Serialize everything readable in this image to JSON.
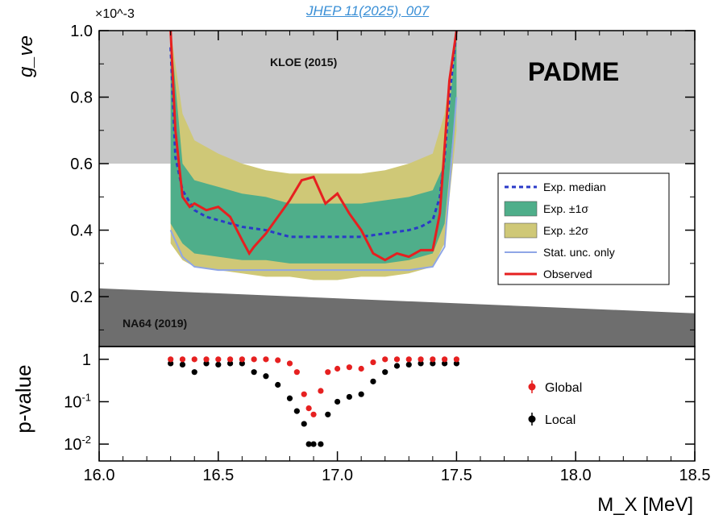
{
  "reference": "JHEP 11(2025), 007",
  "chart_data": [
    {
      "type": "line",
      "ylabel": "g_ve",
      "y_multiplier": "×10^-3",
      "ylim": [
        0.05,
        1.0
      ],
      "xlim": [
        16.0,
        18.5
      ],
      "yticks": [
        "0.2",
        "0.4",
        "0.6",
        "0.8",
        "1.0"
      ],
      "yticks_values": [
        0.2,
        0.4,
        0.6,
        0.8,
        1.0
      ],
      "experiment_label": "PADME",
      "excluded_regions": [
        {
          "name": "KLOE (2015)",
          "y_lower": 0.6,
          "y_upper": 1.0,
          "color": "#c8c8c8"
        },
        {
          "name": "NA64 (2019)",
          "y_upper_at_xmin": 0.225,
          "y_upper_at_xmax": 0.15,
          "color": "#6e6e6e"
        }
      ],
      "legend_location": "right",
      "legend": [
        {
          "label": "Exp. median",
          "style": "dashed",
          "color": "#2a3ac8"
        },
        {
          "label": "Exp. ±1σ",
          "style": "fill",
          "color": "#4fae8a"
        },
        {
          "label": "Exp. ±2σ",
          "style": "fill",
          "color": "#cfc877"
        },
        {
          "label": "Stat. unc. only",
          "style": "line",
          "color": "#8fa6e6"
        },
        {
          "label": "Observed",
          "style": "line",
          "color": "#e62020"
        }
      ],
      "series": [
        {
          "name": "Exp. median",
          "x": [
            16.3,
            16.32,
            16.35,
            16.4,
            16.45,
            16.5,
            16.6,
            16.7,
            16.8,
            16.9,
            17.0,
            17.1,
            17.2,
            17.3,
            17.35,
            17.4,
            17.43,
            17.45,
            17.47,
            17.5
          ],
          "y": [
            0.95,
            0.62,
            0.52,
            0.46,
            0.44,
            0.43,
            0.41,
            0.4,
            0.38,
            0.38,
            0.38,
            0.38,
            0.39,
            0.4,
            0.41,
            0.43,
            0.5,
            0.62,
            0.8,
            1.0
          ]
        },
        {
          "name": "Observed",
          "x": [
            16.3,
            16.32,
            16.35,
            16.38,
            16.4,
            16.45,
            16.5,
            16.55,
            16.6,
            16.63,
            16.65,
            16.7,
            16.75,
            16.8,
            16.85,
            16.9,
            16.95,
            17.0,
            17.05,
            17.1,
            17.15,
            17.2,
            17.25,
            17.3,
            17.35,
            17.4,
            17.43,
            17.45,
            17.47,
            17.5
          ],
          "y": [
            1.0,
            0.7,
            0.5,
            0.47,
            0.48,
            0.46,
            0.47,
            0.44,
            0.37,
            0.33,
            0.35,
            0.39,
            0.44,
            0.49,
            0.55,
            0.56,
            0.48,
            0.51,
            0.45,
            0.4,
            0.33,
            0.31,
            0.33,
            0.32,
            0.34,
            0.34,
            0.45,
            0.65,
            0.85,
            1.0
          ]
        }
      ],
      "bands": {
        "x": [
          16.3,
          16.35,
          16.4,
          16.5,
          16.6,
          16.7,
          16.8,
          16.9,
          17.0,
          17.1,
          17.2,
          17.3,
          17.4,
          17.45,
          17.5
        ],
        "one_sigma_low": [
          0.42,
          0.36,
          0.33,
          0.32,
          0.31,
          0.31,
          0.3,
          0.3,
          0.3,
          0.3,
          0.3,
          0.31,
          0.33,
          0.42,
          0.8
        ],
        "one_sigma_high": [
          1.0,
          0.6,
          0.55,
          0.53,
          0.51,
          0.5,
          0.48,
          0.48,
          0.48,
          0.48,
          0.49,
          0.5,
          0.52,
          0.6,
          1.0
        ],
        "two_sigma_low": [
          0.36,
          0.31,
          0.29,
          0.28,
          0.27,
          0.26,
          0.26,
          0.25,
          0.25,
          0.26,
          0.26,
          0.27,
          0.29,
          0.36,
          0.7
        ],
        "two_sigma_high": [
          1.0,
          0.75,
          0.67,
          0.63,
          0.6,
          0.58,
          0.57,
          0.57,
          0.57,
          0.57,
          0.58,
          0.6,
          0.63,
          0.75,
          1.0
        ],
        "stat_only": [
          0.4,
          0.32,
          0.29,
          0.28,
          0.28,
          0.28,
          0.28,
          0.28,
          0.28,
          0.28,
          0.28,
          0.28,
          0.29,
          0.35,
          0.8
        ]
      }
    },
    {
      "type": "scatter",
      "ylabel": "p-value",
      "xlabel": "M_X [MeV]",
      "xlim": [
        16.0,
        18.5
      ],
      "xticks": [
        "16.0",
        "16.5",
        "17.0",
        "17.5",
        "18.0",
        "18.5"
      ],
      "xticks_values": [
        16.0,
        16.5,
        17.0,
        17.5,
        18.0,
        18.5
      ],
      "yscale": "log",
      "ylim": [
        0.004,
        2.0
      ],
      "yticks": [
        "1",
        "10^-1",
        "10^-2"
      ],
      "yticks_values": [
        1,
        0.1,
        0.01
      ],
      "legend_location": "right",
      "legend": [
        {
          "label": "Global",
          "color": "#e62020"
        },
        {
          "label": "Local",
          "color": "#000000"
        }
      ],
      "series": [
        {
          "name": "Global",
          "x": [
            16.3,
            16.35,
            16.4,
            16.45,
            16.5,
            16.55,
            16.6,
            16.65,
            16.7,
            16.75,
            16.8,
            16.83,
            16.86,
            16.88,
            16.9,
            16.93,
            16.96,
            17.0,
            17.05,
            17.1,
            17.15,
            17.2,
            17.25,
            17.3,
            17.35,
            17.4,
            17.45,
            17.5
          ],
          "y": [
            1,
            1,
            1,
            1,
            1,
            1,
            1,
            1,
            1,
            0.95,
            0.8,
            0.5,
            0.15,
            0.07,
            0.05,
            0.18,
            0.5,
            0.6,
            0.65,
            0.6,
            0.85,
            1,
            1,
            1,
            1,
            1,
            1,
            1
          ]
        },
        {
          "name": "Local",
          "x": [
            16.3,
            16.35,
            16.4,
            16.45,
            16.5,
            16.55,
            16.6,
            16.65,
            16.7,
            16.75,
            16.8,
            16.83,
            16.86,
            16.88,
            16.9,
            16.93,
            16.96,
            17.0,
            17.05,
            17.1,
            17.15,
            17.2,
            17.25,
            17.3,
            17.35,
            17.4,
            17.45,
            17.5
          ],
          "y": [
            0.8,
            0.75,
            0.5,
            0.8,
            0.75,
            0.8,
            0.8,
            0.5,
            0.4,
            0.25,
            0.12,
            0.06,
            0.03,
            0.01,
            0.01,
            0.01,
            0.05,
            0.1,
            0.13,
            0.15,
            0.3,
            0.5,
            0.7,
            0.75,
            0.8,
            0.8,
            0.8,
            0.8
          ]
        }
      ]
    }
  ]
}
